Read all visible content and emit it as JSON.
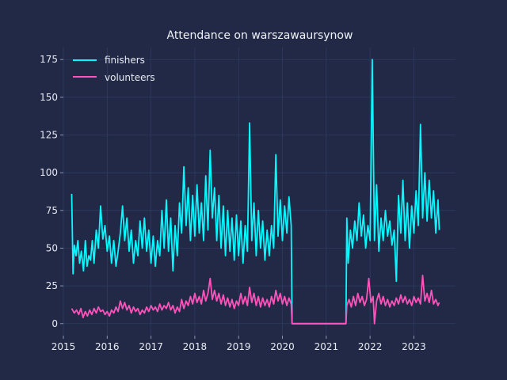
{
  "chart_data": {
    "type": "line",
    "title": "Attendance on warszawaursynow",
    "xlabel": "",
    "ylabel": "",
    "xlim": [
      2015.0,
      2023.95
    ],
    "ylim": [
      -8,
      183
    ],
    "x_ticks": [
      2015,
      2016,
      2017,
      2018,
      2019,
      2020,
      2021,
      2022,
      2023
    ],
    "x_tick_labels": [
      "2015",
      "2016",
      "2017",
      "2018",
      "2019",
      "2020",
      "2021",
      "2022",
      "2023"
    ],
    "y_ticks": [
      0,
      25,
      50,
      75,
      100,
      125,
      150,
      175
    ],
    "y_tick_labels": [
      "0",
      "25",
      "50",
      "75",
      "100",
      "125",
      "150",
      "175"
    ],
    "grid": true,
    "legend_position": "top-left",
    "series": [
      {
        "name": "finishers",
        "color": "#08f7fe",
        "points": [
          [
            2015.19,
            86
          ],
          [
            2015.22,
            33
          ],
          [
            2015.25,
            52
          ],
          [
            2015.29,
            45
          ],
          [
            2015.33,
            55
          ],
          [
            2015.37,
            40
          ],
          [
            2015.41,
            48
          ],
          [
            2015.46,
            35
          ],
          [
            2015.5,
            55
          ],
          [
            2015.54,
            38
          ],
          [
            2015.58,
            45
          ],
          [
            2015.62,
            42
          ],
          [
            2015.66,
            55
          ],
          [
            2015.7,
            40
          ],
          [
            2015.75,
            62
          ],
          [
            2015.8,
            50
          ],
          [
            2015.85,
            78
          ],
          [
            2015.9,
            56
          ],
          [
            2015.95,
            65
          ],
          [
            2016.0,
            48
          ],
          [
            2016.05,
            58
          ],
          [
            2016.1,
            40
          ],
          [
            2016.15,
            55
          ],
          [
            2016.2,
            38
          ],
          [
            2016.25,
            48
          ],
          [
            2016.3,
            60
          ],
          [
            2016.35,
            78
          ],
          [
            2016.4,
            55
          ],
          [
            2016.45,
            70
          ],
          [
            2016.5,
            48
          ],
          [
            2016.55,
            62
          ],
          [
            2016.6,
            40
          ],
          [
            2016.65,
            55
          ],
          [
            2016.7,
            45
          ],
          [
            2016.75,
            68
          ],
          [
            2016.8,
            50
          ],
          [
            2016.85,
            70
          ],
          [
            2016.9,
            48
          ],
          [
            2016.95,
            62
          ],
          [
            2017.0,
            40
          ],
          [
            2017.05,
            58
          ],
          [
            2017.1,
            38
          ],
          [
            2017.15,
            55
          ],
          [
            2017.2,
            45
          ],
          [
            2017.25,
            75
          ],
          [
            2017.3,
            50
          ],
          [
            2017.35,
            82
          ],
          [
            2017.4,
            48
          ],
          [
            2017.45,
            70
          ],
          [
            2017.5,
            35
          ],
          [
            2017.55,
            65
          ],
          [
            2017.6,
            45
          ],
          [
            2017.65,
            80
          ],
          [
            2017.7,
            60
          ],
          [
            2017.75,
            104
          ],
          [
            2017.8,
            65
          ],
          [
            2017.85,
            90
          ],
          [
            2017.9,
            55
          ],
          [
            2017.95,
            85
          ],
          [
            2018.0,
            58
          ],
          [
            2018.05,
            92
          ],
          [
            2018.1,
            60
          ],
          [
            2018.15,
            80
          ],
          [
            2018.2,
            55
          ],
          [
            2018.25,
            98
          ],
          [
            2018.3,
            62
          ],
          [
            2018.35,
            115
          ],
          [
            2018.4,
            70
          ],
          [
            2018.45,
            90
          ],
          [
            2018.5,
            55
          ],
          [
            2018.55,
            85
          ],
          [
            2018.6,
            50
          ],
          [
            2018.65,
            78
          ],
          [
            2018.7,
            45
          ],
          [
            2018.75,
            75
          ],
          [
            2018.8,
            48
          ],
          [
            2018.85,
            70
          ],
          [
            2018.9,
            42
          ],
          [
            2018.95,
            72
          ],
          [
            2019.0,
            45
          ],
          [
            2019.05,
            68
          ],
          [
            2019.1,
            40
          ],
          [
            2019.15,
            65
          ],
          [
            2019.2,
            48
          ],
          [
            2019.25,
            133
          ],
          [
            2019.3,
            55
          ],
          [
            2019.35,
            80
          ],
          [
            2019.4,
            45
          ],
          [
            2019.45,
            75
          ],
          [
            2019.5,
            50
          ],
          [
            2019.55,
            68
          ],
          [
            2019.6,
            42
          ],
          [
            2019.65,
            62
          ],
          [
            2019.7,
            45
          ],
          [
            2019.75,
            65
          ],
          [
            2019.8,
            50
          ],
          [
            2019.85,
            112
          ],
          [
            2019.9,
            58
          ],
          [
            2019.95,
            82
          ],
          [
            2020.0,
            55
          ],
          [
            2020.05,
            78
          ],
          [
            2020.1,
            60
          ],
          [
            2020.15,
            84
          ],
          [
            2020.2,
            65
          ],
          [
            2020.22,
            0
          ],
          [
            2021.45,
            0
          ],
          [
            2021.47,
            70
          ],
          [
            2021.5,
            40
          ],
          [
            2021.55,
            62
          ],
          [
            2021.6,
            50
          ],
          [
            2021.65,
            68
          ],
          [
            2021.7,
            55
          ],
          [
            2021.75,
            80
          ],
          [
            2021.8,
            58
          ],
          [
            2021.85,
            72
          ],
          [
            2021.9,
            50
          ],
          [
            2021.95,
            65
          ],
          [
            2022.0,
            55
          ],
          [
            2022.05,
            175
          ],
          [
            2022.1,
            55
          ],
          [
            2022.15,
            92
          ],
          [
            2022.2,
            48
          ],
          [
            2022.25,
            70
          ],
          [
            2022.3,
            55
          ],
          [
            2022.35,
            75
          ],
          [
            2022.4,
            58
          ],
          [
            2022.45,
            68
          ],
          [
            2022.5,
            52
          ],
          [
            2022.55,
            62
          ],
          [
            2022.6,
            28
          ],
          [
            2022.65,
            85
          ],
          [
            2022.7,
            60
          ],
          [
            2022.75,
            95
          ],
          [
            2022.8,
            55
          ],
          [
            2022.85,
            80
          ],
          [
            2022.9,
            50
          ],
          [
            2022.95,
            78
          ],
          [
            2023.0,
            60
          ],
          [
            2023.05,
            88
          ],
          [
            2023.1,
            65
          ],
          [
            2023.15,
            132
          ],
          [
            2023.2,
            70
          ],
          [
            2023.25,
            100
          ],
          [
            2023.3,
            68
          ],
          [
            2023.35,
            95
          ],
          [
            2023.4,
            70
          ],
          [
            2023.45,
            88
          ],
          [
            2023.5,
            60
          ],
          [
            2023.55,
            82
          ],
          [
            2023.58,
            62
          ]
        ]
      },
      {
        "name": "volunteers",
        "color": "#fe53bb",
        "points": [
          [
            2015.19,
            10
          ],
          [
            2015.25,
            7
          ],
          [
            2015.3,
            9
          ],
          [
            2015.35,
            6
          ],
          [
            2015.4,
            10
          ],
          [
            2015.45,
            4
          ],
          [
            2015.5,
            8
          ],
          [
            2015.55,
            5
          ],
          [
            2015.6,
            9
          ],
          [
            2015.65,
            6
          ],
          [
            2015.7,
            10
          ],
          [
            2015.75,
            7
          ],
          [
            2015.8,
            11
          ],
          [
            2015.85,
            8
          ],
          [
            2015.9,
            9
          ],
          [
            2015.95,
            6
          ],
          [
            2016.0,
            8
          ],
          [
            2016.05,
            5
          ],
          [
            2016.1,
            9
          ],
          [
            2016.15,
            7
          ],
          [
            2016.2,
            11
          ],
          [
            2016.25,
            8
          ],
          [
            2016.3,
            15
          ],
          [
            2016.35,
            10
          ],
          [
            2016.4,
            14
          ],
          [
            2016.45,
            9
          ],
          [
            2016.5,
            12
          ],
          [
            2016.55,
            7
          ],
          [
            2016.6,
            11
          ],
          [
            2016.65,
            8
          ],
          [
            2016.7,
            10
          ],
          [
            2016.75,
            6
          ],
          [
            2016.8,
            9
          ],
          [
            2016.85,
            7
          ],
          [
            2016.9,
            11
          ],
          [
            2016.95,
            8
          ],
          [
            2017.0,
            12
          ],
          [
            2017.05,
            9
          ],
          [
            2017.1,
            11
          ],
          [
            2017.15,
            8
          ],
          [
            2017.2,
            13
          ],
          [
            2017.25,
            9
          ],
          [
            2017.3,
            12
          ],
          [
            2017.35,
            10
          ],
          [
            2017.4,
            14
          ],
          [
            2017.45,
            9
          ],
          [
            2017.5,
            12
          ],
          [
            2017.55,
            7
          ],
          [
            2017.6,
            11
          ],
          [
            2017.65,
            8
          ],
          [
            2017.7,
            16
          ],
          [
            2017.75,
            10
          ],
          [
            2017.8,
            15
          ],
          [
            2017.85,
            12
          ],
          [
            2017.9,
            18
          ],
          [
            2017.95,
            13
          ],
          [
            2018.0,
            20
          ],
          [
            2018.05,
            14
          ],
          [
            2018.1,
            18
          ],
          [
            2018.15,
            13
          ],
          [
            2018.2,
            22
          ],
          [
            2018.25,
            15
          ],
          [
            2018.3,
            20
          ],
          [
            2018.35,
            30
          ],
          [
            2018.4,
            16
          ],
          [
            2018.45,
            22
          ],
          [
            2018.5,
            15
          ],
          [
            2018.55,
            20
          ],
          [
            2018.6,
            13
          ],
          [
            2018.65,
            19
          ],
          [
            2018.7,
            12
          ],
          [
            2018.75,
            17
          ],
          [
            2018.8,
            11
          ],
          [
            2018.85,
            16
          ],
          [
            2018.9,
            10
          ],
          [
            2018.95,
            15
          ],
          [
            2019.0,
            12
          ],
          [
            2019.05,
            20
          ],
          [
            2019.1,
            13
          ],
          [
            2019.15,
            18
          ],
          [
            2019.2,
            12
          ],
          [
            2019.25,
            24
          ],
          [
            2019.3,
            14
          ],
          [
            2019.35,
            20
          ],
          [
            2019.4,
            12
          ],
          [
            2019.45,
            18
          ],
          [
            2019.5,
            11
          ],
          [
            2019.55,
            17
          ],
          [
            2019.6,
            12
          ],
          [
            2019.65,
            16
          ],
          [
            2019.7,
            11
          ],
          [
            2019.75,
            18
          ],
          [
            2019.8,
            13
          ],
          [
            2019.85,
            22
          ],
          [
            2019.9,
            15
          ],
          [
            2019.95,
            20
          ],
          [
            2020.0,
            13
          ],
          [
            2020.05,
            18
          ],
          [
            2020.1,
            12
          ],
          [
            2020.15,
            17
          ],
          [
            2020.2,
            13
          ],
          [
            2020.22,
            0
          ],
          [
            2021.45,
            0
          ],
          [
            2021.47,
            12
          ],
          [
            2021.52,
            16
          ],
          [
            2021.57,
            11
          ],
          [
            2021.62,
            18
          ],
          [
            2021.67,
            12
          ],
          [
            2021.72,
            20
          ],
          [
            2021.77,
            14
          ],
          [
            2021.82,
            18
          ],
          [
            2021.87,
            12
          ],
          [
            2021.92,
            16
          ],
          [
            2021.97,
            30
          ],
          [
            2022.02,
            14
          ],
          [
            2022.07,
            18
          ],
          [
            2022.1,
            0
          ],
          [
            2022.15,
            15
          ],
          [
            2022.2,
            20
          ],
          [
            2022.25,
            13
          ],
          [
            2022.3,
            18
          ],
          [
            2022.35,
            12
          ],
          [
            2022.4,
            16
          ],
          [
            2022.45,
            11
          ],
          [
            2022.5,
            15
          ],
          [
            2022.55,
            12
          ],
          [
            2022.6,
            17
          ],
          [
            2022.65,
            13
          ],
          [
            2022.7,
            19
          ],
          [
            2022.75,
            14
          ],
          [
            2022.8,
            18
          ],
          [
            2022.85,
            13
          ],
          [
            2022.9,
            16
          ],
          [
            2022.95,
            12
          ],
          [
            2023.0,
            18
          ],
          [
            2023.05,
            14
          ],
          [
            2023.1,
            17
          ],
          [
            2023.15,
            13
          ],
          [
            2023.2,
            32
          ],
          [
            2023.25,
            15
          ],
          [
            2023.3,
            20
          ],
          [
            2023.35,
            14
          ],
          [
            2023.4,
            22
          ],
          [
            2023.45,
            13
          ],
          [
            2023.5,
            16
          ],
          [
            2023.55,
            12
          ],
          [
            2023.58,
            14
          ]
        ]
      }
    ]
  }
}
